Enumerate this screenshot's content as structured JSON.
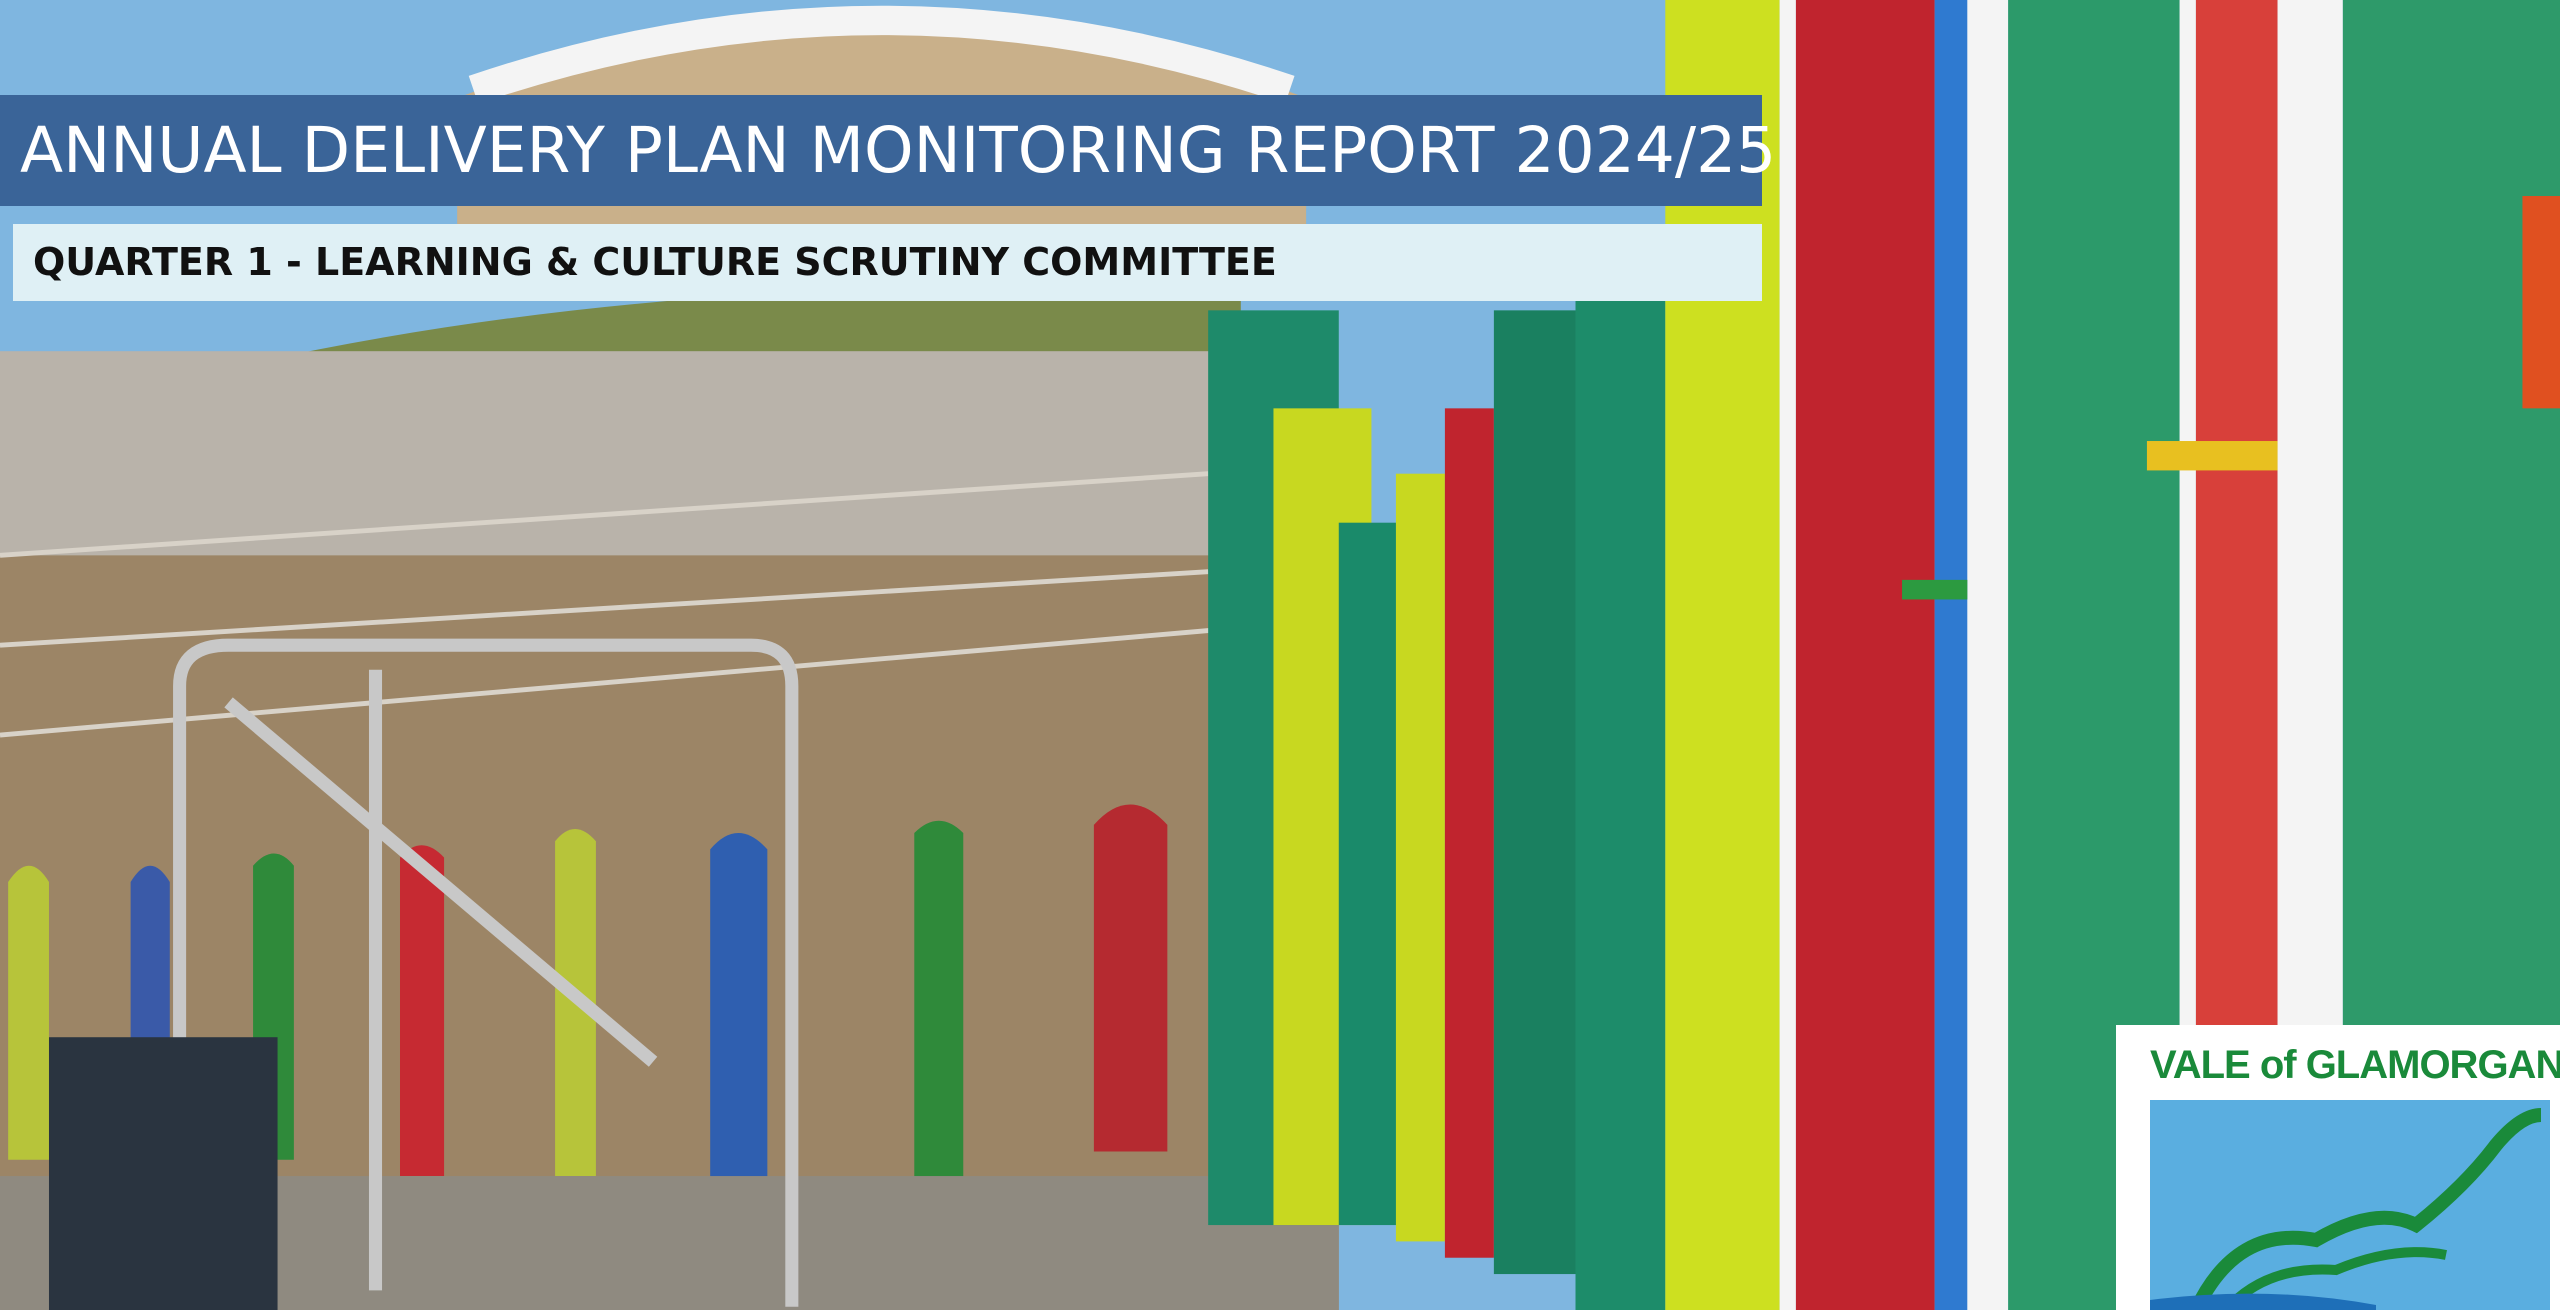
{
  "header": {
    "title": "ANNUAL DELIVERY PLAN MONITORING REPORT 2024/25",
    "subtitle": "QUARTER 1 - LEARNING & CULTURE SCRUTINY COMMITTEE"
  },
  "logo": {
    "text": "VALE of GLAMORGAN"
  }
}
